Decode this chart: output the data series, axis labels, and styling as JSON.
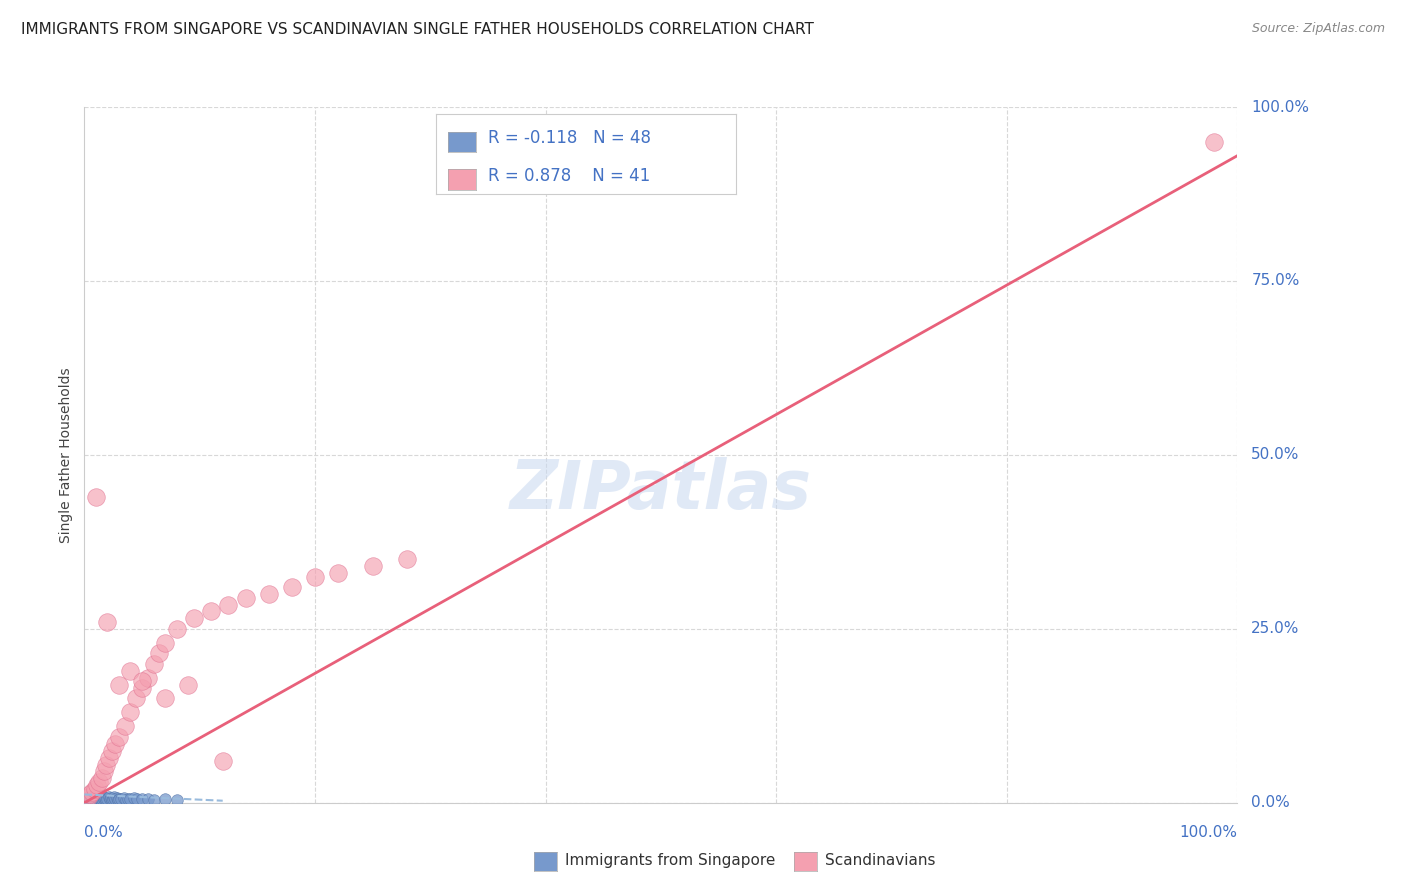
{
  "title": "IMMIGRANTS FROM SINGAPORE VS SCANDINAVIAN SINGLE FATHER HOUSEHOLDS CORRELATION CHART",
  "source": "Source: ZipAtlas.com",
  "ylabel": "Single Father Households",
  "watermark": "ZIPatlas",
  "watermark_color": "#c8d8f0",
  "background_color": "#ffffff",
  "grid_color": "#d8d8d8",
  "scatter_blue_color": "#7799cc",
  "scatter_blue_edge": "#5577aa",
  "scatter_pink_color": "#f4a0b0",
  "scatter_pink_edge": "#e07090",
  "trend_pink_color": "#e8607a",
  "trend_blue_color": "#99bbdd",
  "axis_color": "#4472c4",
  "legend_text_color": "#4472c4",
  "title_color": "#222222",
  "source_color": "#888888",
  "blue_scatter_x": [
    0.1,
    0.15,
    0.2,
    0.25,
    0.3,
    0.35,
    0.4,
    0.45,
    0.5,
    0.55,
    0.6,
    0.65,
    0.7,
    0.8,
    0.9,
    1.0,
    1.1,
    1.2,
    1.3,
    1.4,
    1.5,
    1.6,
    1.7,
    1.8,
    1.9,
    2.0,
    2.1,
    2.2,
    2.3,
    2.4,
    2.5,
    2.6,
    2.7,
    2.8,
    2.9,
    3.0,
    3.2,
    3.4,
    3.6,
    3.8,
    4.0,
    4.3,
    4.6,
    5.0,
    5.5,
    6.0,
    7.0,
    8.0
  ],
  "blue_scatter_y": [
    0.3,
    0.5,
    0.7,
    0.4,
    0.6,
    0.8,
    0.5,
    0.7,
    0.9,
    0.4,
    0.6,
    0.8,
    0.5,
    0.7,
    0.4,
    0.6,
    0.8,
    0.5,
    0.7,
    0.4,
    0.6,
    0.8,
    0.5,
    0.7,
    0.4,
    0.6,
    0.8,
    0.5,
    0.7,
    0.4,
    0.6,
    0.8,
    0.5,
    0.7,
    0.4,
    0.6,
    0.5,
    0.7,
    0.4,
    0.6,
    0.5,
    0.7,
    0.5,
    0.6,
    0.5,
    0.4,
    0.5,
    0.4
  ],
  "pink_scatter_x": [
    0.3,
    0.5,
    0.7,
    0.9,
    1.1,
    1.3,
    1.5,
    1.7,
    1.9,
    2.1,
    2.4,
    2.7,
    3.0,
    3.5,
    4.0,
    4.5,
    5.0,
    5.5,
    6.0,
    6.5,
    7.0,
    8.0,
    9.5,
    11.0,
    12.5,
    14.0,
    16.0,
    18.0,
    20.0,
    22.0,
    25.0,
    28.0,
    1.0,
    2.0,
    3.0,
    4.0,
    5.0,
    7.0,
    9.0,
    12.0,
    98.0
  ],
  "pink_scatter_y": [
    0.8,
    1.2,
    1.5,
    2.0,
    2.5,
    3.0,
    3.5,
    4.5,
    5.5,
    6.5,
    7.5,
    8.5,
    9.5,
    11.0,
    13.0,
    15.0,
    16.5,
    18.0,
    20.0,
    21.5,
    23.0,
    25.0,
    26.5,
    27.5,
    28.5,
    29.5,
    30.0,
    31.0,
    32.5,
    33.0,
    34.0,
    35.0,
    44.0,
    26.0,
    17.0,
    19.0,
    17.5,
    15.0,
    17.0,
    6.0,
    95.0
  ],
  "pink_line_x0": 0.0,
  "pink_line_y0": 0.0,
  "pink_line_x1": 100.0,
  "pink_line_y1": 93.0,
  "blue_line_x0": 0.0,
  "blue_line_y0": 1.2,
  "blue_line_x1": 12.0,
  "blue_line_y1": 0.3,
  "xlim": [
    0,
    100
  ],
  "ylim": [
    0,
    100
  ],
  "yticks": [
    0,
    25,
    50,
    75,
    100
  ],
  "ytick_labels": [
    "0.0%",
    "25.0%",
    "50.0%",
    "75.0%",
    "100.0%"
  ],
  "title_fontsize": 11,
  "source_fontsize": 9,
  "tick_fontsize": 11,
  "ylabel_fontsize": 10,
  "legend_fontsize": 12,
  "watermark_fontsize": 48
}
